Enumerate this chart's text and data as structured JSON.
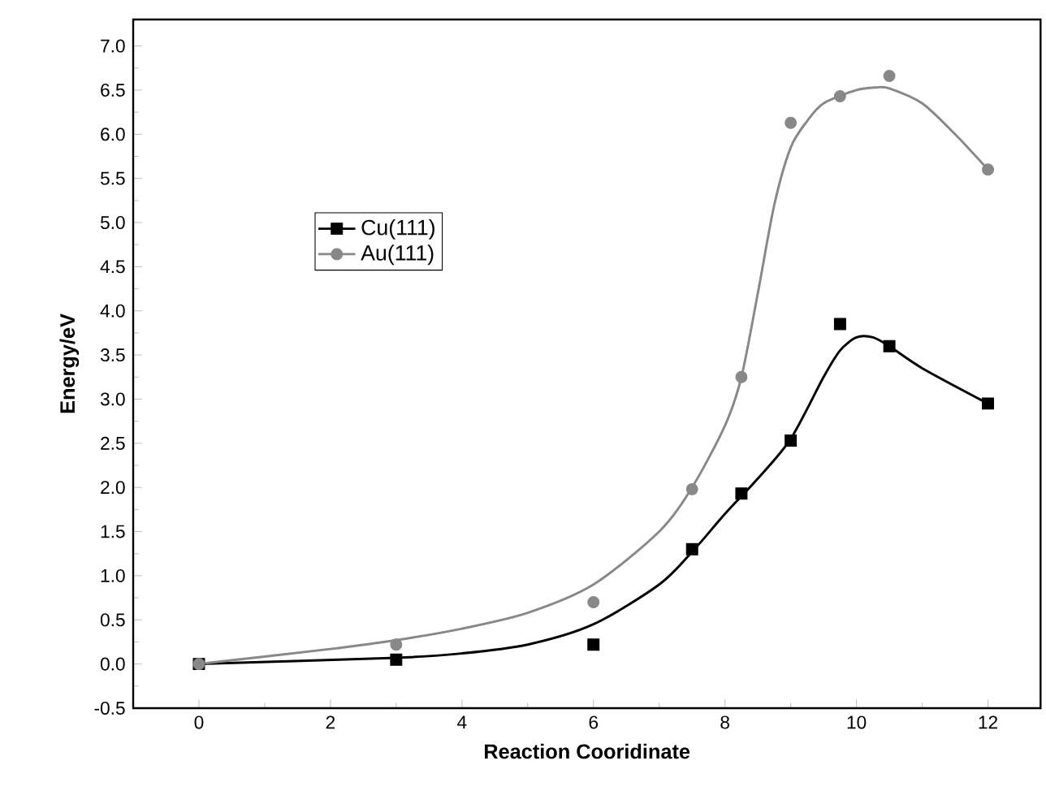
{
  "chart_data": {
    "type": "scatter",
    "xlabel": "Reaction Cooridinate",
    "ylabel": "Energy/eV",
    "xlim": [
      -1,
      12.8
    ],
    "ylim": [
      -0.5,
      7.3
    ],
    "xticks": [
      0,
      2,
      4,
      6,
      8,
      10,
      12
    ],
    "yticks": [
      {
        "value": -0.5,
        "label": "-0.5"
      },
      {
        "value": 0,
        "label": "0.0"
      },
      {
        "value": 0.5,
        "label": "0.5"
      },
      {
        "value": 1,
        "label": "1.0"
      },
      {
        "value": 1.5,
        "label": "1.5"
      },
      {
        "value": 2,
        "label": "2.0"
      },
      {
        "value": 2.5,
        "label": "2.5"
      },
      {
        "value": 3,
        "label": "3.0"
      },
      {
        "value": 3.5,
        "label": "3.5"
      },
      {
        "value": 4,
        "label": "4.0"
      },
      {
        "value": 4.5,
        "label": "4.5"
      },
      {
        "value": 5,
        "label": "5.0"
      },
      {
        "value": 5.5,
        "label": "5.5"
      },
      {
        "value": 6,
        "label": "6.0"
      },
      {
        "value": 6.5,
        "label": "6.5"
      },
      {
        "value": 7,
        "label": "7.0"
      }
    ],
    "legend": "left",
    "grid": false,
    "series": [
      {
        "name": "Cu(111)",
        "marker": "square",
        "color": "#000000",
        "x": [
          0,
          3,
          6,
          7.5,
          8.25,
          9,
          9.75,
          10.5,
          12
        ],
        "values": [
          0,
          0.05,
          0.22,
          1.3,
          1.93,
          2.53,
          3.85,
          3.6,
          2.95
        ]
      },
      {
        "name": "Au(111)",
        "marker": "circle",
        "color": "#888888",
        "x": [
          0,
          3,
          6,
          7.5,
          8.25,
          9,
          9.75,
          10.5,
          12
        ],
        "values": [
          0,
          0.22,
          0.7,
          1.98,
          3.25,
          6.13,
          6.43,
          6.66,
          5.6
        ]
      },
      {
        "type": "line",
        "marker": "none",
        "line_style": "solid",
        "color": "#000000",
        "x": [
          0,
          3,
          4,
          5,
          6,
          7,
          7.5,
          8,
          8.5,
          9,
          9.5,
          9.75,
          10,
          10.25,
          10.5,
          11,
          12
        ],
        "values": [
          0,
          0.07,
          0.12,
          0.22,
          0.45,
          0.9,
          1.27,
          1.7,
          2.1,
          2.55,
          3.25,
          3.55,
          3.7,
          3.7,
          3.6,
          3.35,
          2.95
        ]
      },
      {
        "type": "line",
        "marker": "none",
        "line_style": "solid",
        "color": "#888888",
        "x": [
          0,
          2,
          3,
          4,
          5,
          6,
          7,
          7.5,
          8,
          8.25,
          8.5,
          8.75,
          9,
          9.25,
          9.5,
          10,
          10.3,
          10.5,
          11,
          11.5,
          12
        ],
        "values": [
          0,
          0.17,
          0.27,
          0.4,
          0.58,
          0.9,
          1.5,
          2.0,
          2.7,
          3.25,
          4.2,
          5.2,
          5.85,
          6.15,
          6.35,
          6.5,
          6.53,
          6.52,
          6.35,
          6.0,
          5.6
        ]
      }
    ]
  }
}
